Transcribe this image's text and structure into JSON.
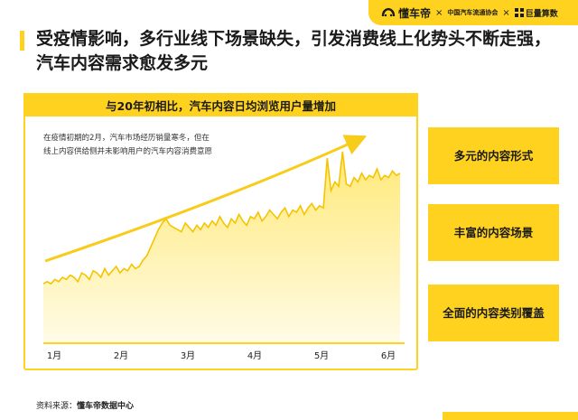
{
  "logos": {
    "brand1": "懂车帝",
    "brand2": "中国汽车流通协会",
    "brand3": "巨量算数",
    "separator": "×"
  },
  "title": "受疫情影响，多行业线下场景缺失，引发消费线上化势头不断走强，汽车内容需求愈发多元",
  "chart_header": "与20年初相比，汽车内容日均浏览用户量增加",
  "annotation": "在疫情初期的2月，汽车市场经历销量寒冬，但在线上内容供给侧并未影响用户的汽车内容消费意愿",
  "side_buttons": [
    "多元的内容形式",
    "丰富的内容场景",
    "全面的内容类别覆盖"
  ],
  "source": {
    "label": "资料来源：",
    "org": "懂车帝数据中心"
  },
  "colors": {
    "accent": "#ffd21f",
    "line": "#f5c400",
    "area": "#fff3b8",
    "arrow": "#f7cc1a"
  },
  "chart_data": {
    "type": "area",
    "title": "与20年初相比，汽车内容日均浏览用户量增加",
    "xlabel": "",
    "ylabel": "",
    "x_tick_labels": [
      "1月",
      "2月",
      "3月",
      "4月",
      "5月",
      "6月"
    ],
    "ylim": [
      0,
      100
    ],
    "grid": false,
    "legend": "none",
    "annotation": "在疫情初期的2月，汽车市场经历销量寒冬，但在线上内容供给侧并未影响用户的汽车内容消费意愿",
    "series": [
      {
        "values": [
          27,
          28,
          27,
          29,
          28,
          30,
          29,
          31,
          30,
          28,
          32,
          31,
          29,
          33,
          32,
          30,
          34,
          31,
          33,
          35,
          32,
          34,
          33,
          36,
          34,
          35,
          38,
          40,
          44,
          48,
          52,
          55,
          57,
          54,
          53,
          52,
          51,
          55,
          53,
          51,
          54,
          52,
          55,
          53,
          56,
          54,
          58,
          55,
          53,
          57,
          55,
          59,
          56,
          54,
          58,
          57,
          60,
          56,
          58,
          61,
          59,
          57,
          60,
          62,
          58,
          61,
          60,
          63,
          59,
          62,
          64,
          61,
          63,
          62,
          85,
          70,
          74,
          72,
          88,
          73,
          72,
          76,
          74,
          78,
          75,
          77,
          76,
          80,
          75,
          77,
          76,
          79,
          77,
          78
        ]
      }
    ]
  }
}
